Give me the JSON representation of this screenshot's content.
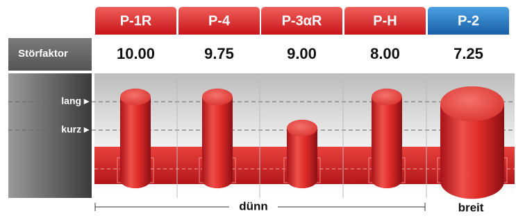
{
  "columns": [
    "P-1R",
    "P-4",
    "P-3αR",
    "P-H",
    "P-2"
  ],
  "row_label": "Störfaktor",
  "values": [
    "10.00",
    "9.75",
    "9.00",
    "8.00",
    "7.25"
  ],
  "levels": {
    "long": "lang ▸",
    "short": "kurz ▸"
  },
  "footer": {
    "thin": "dünn",
    "wide": "breit"
  }
}
